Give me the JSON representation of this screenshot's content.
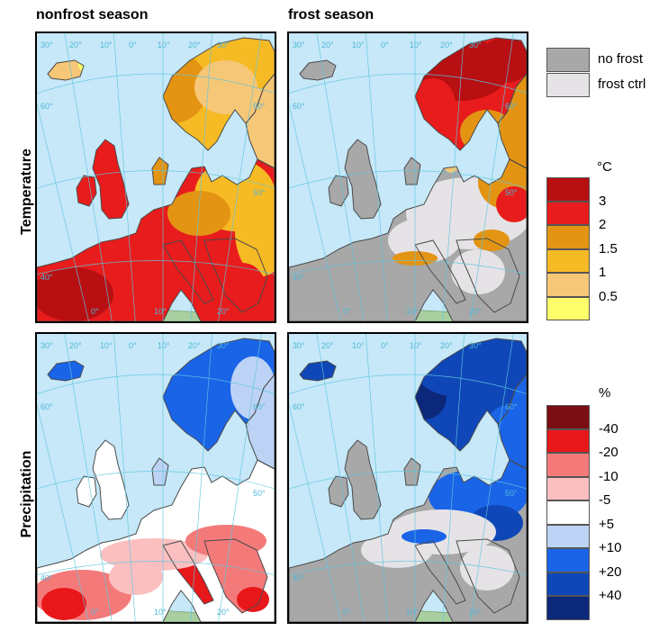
{
  "columns": {
    "nonfrost": "nonfrost season",
    "frost": "frost season"
  },
  "rows": {
    "temperature": "Temperature",
    "precipitation": "Precipitation"
  },
  "graticule": {
    "lon_labels_top": [
      "30°",
      "20°",
      "10°",
      "0°",
      "10°",
      "20°",
      "30°"
    ],
    "lat_labels_left": [
      "60°",
      "40°"
    ],
    "lat_labels_right": [
      "60°",
      "50°"
    ],
    "lon_labels_bottom": [
      "0°",
      "10°",
      "20°"
    ]
  },
  "frost_legend": {
    "items": [
      {
        "label": "no frost",
        "color": "#a8a8a8"
      },
      {
        "label": "frost ctrl",
        "color": "#e6e3e6"
      }
    ]
  },
  "temp_legend": {
    "unit": "°C",
    "colors": [
      "#b80f12",
      "#e81c1c",
      "#e39413",
      "#f6ba24",
      "#f6c776",
      "#fdfd6a"
    ],
    "labels": [
      "3",
      "2",
      "1.5",
      "1",
      "0.5"
    ]
  },
  "precip_legend": {
    "unit": "%",
    "colors": [
      "#7b0e12",
      "#e8181a",
      "#f47a7a",
      "#fbbfc0",
      "#ffffff",
      "#bcd3f5",
      "#1a64e8",
      "#0f47b8",
      "#0c287a"
    ],
    "labels": [
      "-40",
      "-20",
      "-10",
      "-5",
      "+5",
      "+10",
      "+20",
      "+40"
    ]
  }
}
